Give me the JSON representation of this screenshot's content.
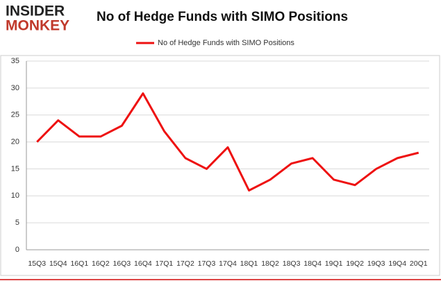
{
  "logo": {
    "top": "INSIDER",
    "bottom": "MONKEY"
  },
  "chart_data": {
    "type": "line",
    "title": "No of Hedge Funds with SIMO Positions",
    "categories": [
      "15Q3",
      "15Q4",
      "16Q1",
      "16Q2",
      "16Q3",
      "16Q4",
      "17Q1",
      "17Q2",
      "17Q3",
      "17Q4",
      "18Q1",
      "18Q2",
      "18Q3",
      "18Q4",
      "19Q1",
      "19Q2",
      "19Q3",
      "19Q4",
      "20Q1"
    ],
    "series": [
      {
        "name": "No of Hedge Funds with SIMO Positions",
        "color": "#ee1111",
        "values": [
          20,
          24,
          21,
          21,
          23,
          29,
          22,
          17,
          15,
          19,
          11,
          13,
          16,
          17,
          13,
          12,
          15,
          17,
          18
        ]
      }
    ],
    "ylim": [
      0,
      35
    ],
    "yticks": [
      0,
      5,
      10,
      15,
      20,
      25,
      30,
      35
    ],
    "grid": true,
    "legend": "top"
  }
}
